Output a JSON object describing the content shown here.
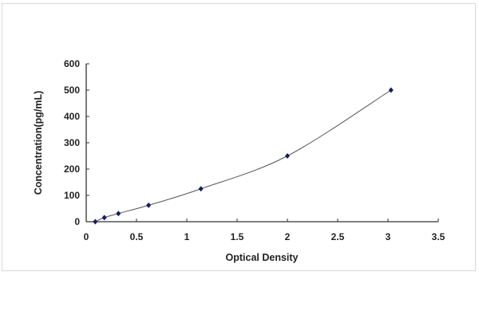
{
  "chart_data": {
    "type": "scatter",
    "title": "",
    "xlabel": "Optical Density",
    "ylabel": "Concentration(pg/mL)",
    "xlim": [
      0,
      3.5
    ],
    "ylim": [
      0,
      600
    ],
    "xticks": [
      "0",
      "0.5",
      "1",
      "1.5",
      "2",
      "2.5",
      "3",
      "3.5"
    ],
    "yticks": [
      "0",
      "100",
      "200",
      "300",
      "400",
      "500",
      "600"
    ],
    "grid": false,
    "legend": "none",
    "series": [
      {
        "x": [
          0.09,
          0.18,
          0.32,
          0.62,
          1.14,
          2.0,
          3.03
        ],
        "y": [
          0,
          15.6,
          31.25,
          62.5,
          125,
          250,
          500
        ],
        "marker": "diamond",
        "line": "smooth fitted curve",
        "color": "#1a1a5e"
      }
    ]
  }
}
